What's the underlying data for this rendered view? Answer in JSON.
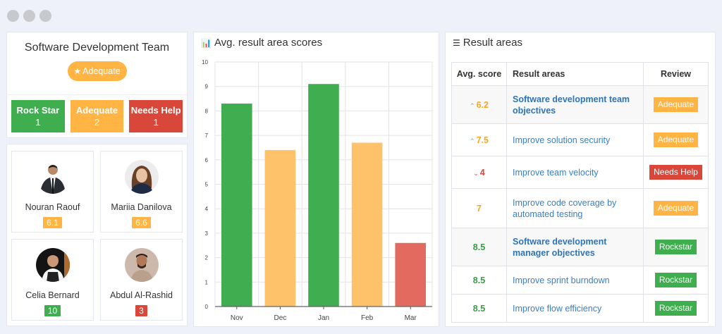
{
  "window": {
    "dots": 3
  },
  "colors": {
    "rockstar": "#3eae4f",
    "adequate": "#ffb443",
    "needs_help": "#d9473a",
    "chart_green": "#40ad50",
    "chart_orange": "#fec36a",
    "chart_red": "#e26a5e",
    "link": "#3a7fc1"
  },
  "team": {
    "title": "Software Development Team",
    "status_icon": "star-icon",
    "status": "Adequate",
    "counts": [
      {
        "label": "Rock Star",
        "value": "1",
        "color": "#3eae4f"
      },
      {
        "label": "Adequate",
        "value": "2",
        "color": "#ffb443"
      },
      {
        "label": "Needs Help",
        "value": "1",
        "color": "#d9473a"
      }
    ]
  },
  "people": [
    {
      "name": "Nouran Raouf",
      "score": "6.1",
      "status": "adequate"
    },
    {
      "name": "Mariia Danilova",
      "score": "6.6",
      "status": "adequate"
    },
    {
      "name": "Celia Bernard",
      "score": "10",
      "status": "rockstar"
    },
    {
      "name": "Abdul Al-Rashid",
      "score": "3",
      "status": "needs_help"
    }
  ],
  "chart_panel": {
    "icon": "bar-chart-icon",
    "title": "Avg. result area scores"
  },
  "chart_data": {
    "type": "bar",
    "title": "Avg. result area scores",
    "categories": [
      "Nov",
      "Dec",
      "Jan",
      "Feb",
      "Mar"
    ],
    "values": [
      8.3,
      6.4,
      9.1,
      6.7,
      2.6
    ],
    "bar_colors": [
      "#40ad50",
      "#fec36a",
      "#40ad50",
      "#fec36a",
      "#e26a5e"
    ],
    "xlabel": "",
    "ylabel": "",
    "ylim": [
      0,
      10
    ],
    "yticks": [
      0,
      1,
      2,
      3,
      4,
      5,
      6,
      7,
      8,
      9,
      10
    ],
    "grid": true,
    "legend": "none"
  },
  "areas_panel": {
    "icon": "sliders-icon",
    "title": "Result areas",
    "columns": [
      "Avg. score",
      "Result areas",
      "Review"
    ],
    "rows": [
      {
        "score": "6.2",
        "trend": "up",
        "area": "Software development team objectives",
        "review": "Adequate",
        "status": "adequate",
        "group": true
      },
      {
        "score": "7.5",
        "trend": "up",
        "area": "Improve solution security",
        "review": "Adequate",
        "status": "adequate",
        "group": false
      },
      {
        "score": "4",
        "trend": "down",
        "area": "Improve team velocity",
        "review": "Needs Help",
        "status": "needs_help",
        "group": false
      },
      {
        "score": "7",
        "trend": "none",
        "area": "Improve code coverage by automated testing",
        "review": "Adequate",
        "status": "adequate",
        "group": false
      },
      {
        "score": "8.5",
        "trend": "none",
        "area": "Software development manager objectives",
        "review": "Rockstar",
        "status": "rockstar",
        "group": true
      },
      {
        "score": "8.5",
        "trend": "none",
        "area": "Improve sprint burndown",
        "review": "Rockstar",
        "status": "rockstar",
        "group": false
      },
      {
        "score": "8.5",
        "trend": "none",
        "area": "Improve flow efficiency",
        "review": "Rockstar",
        "status": "rockstar",
        "group": false
      }
    ]
  }
}
